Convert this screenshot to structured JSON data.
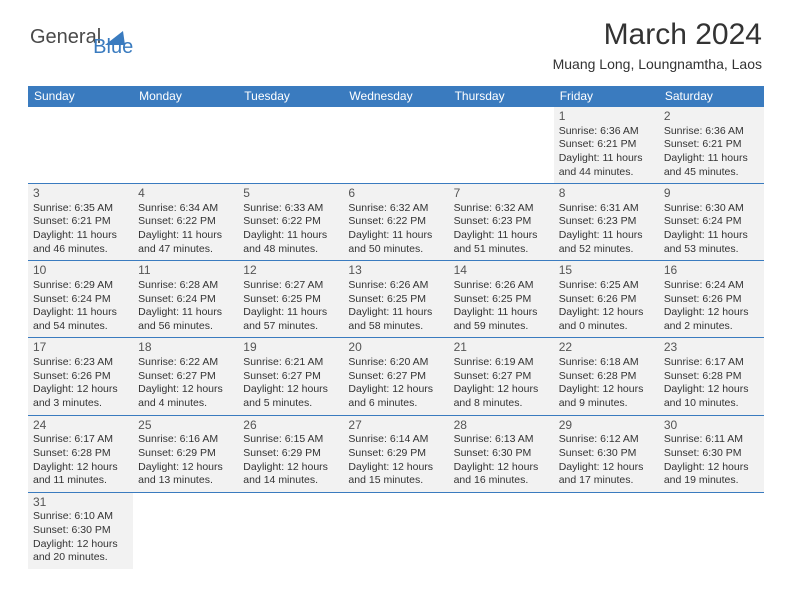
{
  "brand": {
    "part1": "General",
    "part2": "Blue"
  },
  "title": "March 2024",
  "location": "Muang Long, Loungnamtha, Laos",
  "colors": {
    "header_bg": "#3a7bbf",
    "header_fg": "#ffffff",
    "cell_bg": "#f2f2f2",
    "border": "#3a7bbf",
    "text": "#333333"
  },
  "day_headers": [
    "Sunday",
    "Monday",
    "Tuesday",
    "Wednesday",
    "Thursday",
    "Friday",
    "Saturday"
  ],
  "weeks": [
    [
      null,
      null,
      null,
      null,
      null,
      {
        "n": "1",
        "sr": "Sunrise: 6:36 AM",
        "ss": "Sunset: 6:21 PM",
        "dl": "Daylight: 11 hours and 44 minutes."
      },
      {
        "n": "2",
        "sr": "Sunrise: 6:36 AM",
        "ss": "Sunset: 6:21 PM",
        "dl": "Daylight: 11 hours and 45 minutes."
      }
    ],
    [
      {
        "n": "3",
        "sr": "Sunrise: 6:35 AM",
        "ss": "Sunset: 6:21 PM",
        "dl": "Daylight: 11 hours and 46 minutes."
      },
      {
        "n": "4",
        "sr": "Sunrise: 6:34 AM",
        "ss": "Sunset: 6:22 PM",
        "dl": "Daylight: 11 hours and 47 minutes."
      },
      {
        "n": "5",
        "sr": "Sunrise: 6:33 AM",
        "ss": "Sunset: 6:22 PM",
        "dl": "Daylight: 11 hours and 48 minutes."
      },
      {
        "n": "6",
        "sr": "Sunrise: 6:32 AM",
        "ss": "Sunset: 6:22 PM",
        "dl": "Daylight: 11 hours and 50 minutes."
      },
      {
        "n": "7",
        "sr": "Sunrise: 6:32 AM",
        "ss": "Sunset: 6:23 PM",
        "dl": "Daylight: 11 hours and 51 minutes."
      },
      {
        "n": "8",
        "sr": "Sunrise: 6:31 AM",
        "ss": "Sunset: 6:23 PM",
        "dl": "Daylight: 11 hours and 52 minutes."
      },
      {
        "n": "9",
        "sr": "Sunrise: 6:30 AM",
        "ss": "Sunset: 6:24 PM",
        "dl": "Daylight: 11 hours and 53 minutes."
      }
    ],
    [
      {
        "n": "10",
        "sr": "Sunrise: 6:29 AM",
        "ss": "Sunset: 6:24 PM",
        "dl": "Daylight: 11 hours and 54 minutes."
      },
      {
        "n": "11",
        "sr": "Sunrise: 6:28 AM",
        "ss": "Sunset: 6:24 PM",
        "dl": "Daylight: 11 hours and 56 minutes."
      },
      {
        "n": "12",
        "sr": "Sunrise: 6:27 AM",
        "ss": "Sunset: 6:25 PM",
        "dl": "Daylight: 11 hours and 57 minutes."
      },
      {
        "n": "13",
        "sr": "Sunrise: 6:26 AM",
        "ss": "Sunset: 6:25 PM",
        "dl": "Daylight: 11 hours and 58 minutes."
      },
      {
        "n": "14",
        "sr": "Sunrise: 6:26 AM",
        "ss": "Sunset: 6:25 PM",
        "dl": "Daylight: 11 hours and 59 minutes."
      },
      {
        "n": "15",
        "sr": "Sunrise: 6:25 AM",
        "ss": "Sunset: 6:26 PM",
        "dl": "Daylight: 12 hours and 0 minutes."
      },
      {
        "n": "16",
        "sr": "Sunrise: 6:24 AM",
        "ss": "Sunset: 6:26 PM",
        "dl": "Daylight: 12 hours and 2 minutes."
      }
    ],
    [
      {
        "n": "17",
        "sr": "Sunrise: 6:23 AM",
        "ss": "Sunset: 6:26 PM",
        "dl": "Daylight: 12 hours and 3 minutes."
      },
      {
        "n": "18",
        "sr": "Sunrise: 6:22 AM",
        "ss": "Sunset: 6:27 PM",
        "dl": "Daylight: 12 hours and 4 minutes."
      },
      {
        "n": "19",
        "sr": "Sunrise: 6:21 AM",
        "ss": "Sunset: 6:27 PM",
        "dl": "Daylight: 12 hours and 5 minutes."
      },
      {
        "n": "20",
        "sr": "Sunrise: 6:20 AM",
        "ss": "Sunset: 6:27 PM",
        "dl": "Daylight: 12 hours and 6 minutes."
      },
      {
        "n": "21",
        "sr": "Sunrise: 6:19 AM",
        "ss": "Sunset: 6:27 PM",
        "dl": "Daylight: 12 hours and 8 minutes."
      },
      {
        "n": "22",
        "sr": "Sunrise: 6:18 AM",
        "ss": "Sunset: 6:28 PM",
        "dl": "Daylight: 12 hours and 9 minutes."
      },
      {
        "n": "23",
        "sr": "Sunrise: 6:17 AM",
        "ss": "Sunset: 6:28 PM",
        "dl": "Daylight: 12 hours and 10 minutes."
      }
    ],
    [
      {
        "n": "24",
        "sr": "Sunrise: 6:17 AM",
        "ss": "Sunset: 6:28 PM",
        "dl": "Daylight: 12 hours and 11 minutes."
      },
      {
        "n": "25",
        "sr": "Sunrise: 6:16 AM",
        "ss": "Sunset: 6:29 PM",
        "dl": "Daylight: 12 hours and 13 minutes."
      },
      {
        "n": "26",
        "sr": "Sunrise: 6:15 AM",
        "ss": "Sunset: 6:29 PM",
        "dl": "Daylight: 12 hours and 14 minutes."
      },
      {
        "n": "27",
        "sr": "Sunrise: 6:14 AM",
        "ss": "Sunset: 6:29 PM",
        "dl": "Daylight: 12 hours and 15 minutes."
      },
      {
        "n": "28",
        "sr": "Sunrise: 6:13 AM",
        "ss": "Sunset: 6:30 PM",
        "dl": "Daylight: 12 hours and 16 minutes."
      },
      {
        "n": "29",
        "sr": "Sunrise: 6:12 AM",
        "ss": "Sunset: 6:30 PM",
        "dl": "Daylight: 12 hours and 17 minutes."
      },
      {
        "n": "30",
        "sr": "Sunrise: 6:11 AM",
        "ss": "Sunset: 6:30 PM",
        "dl": "Daylight: 12 hours and 19 minutes."
      }
    ],
    [
      {
        "n": "31",
        "sr": "Sunrise: 6:10 AM",
        "ss": "Sunset: 6:30 PM",
        "dl": "Daylight: 12 hours and 20 minutes."
      },
      null,
      null,
      null,
      null,
      null,
      null
    ]
  ]
}
